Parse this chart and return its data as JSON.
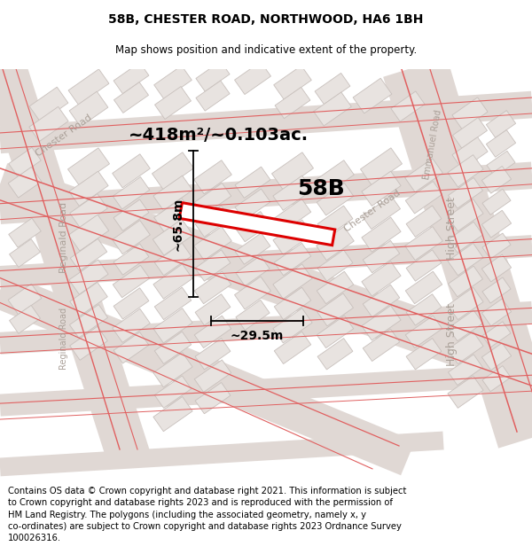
{
  "title": "58B, CHESTER ROAD, NORTHWOOD, HA6 1BH",
  "subtitle": "Map shows position and indicative extent of the property.",
  "footer": "Contains OS data © Crown copyright and database right 2021. This information is subject\nto Crown copyright and database rights 2023 and is reproduced with the permission of\nHM Land Registry. The polygons (including the associated geometry, namely x, y\nco-ordinates) are subject to Crown copyright and database rights 2023 Ordnance Survey\n100026316.",
  "area_label": "~418m²/~0.103ac.",
  "property_label": "58B",
  "width_label": "~29.5m",
  "height_label": "~65.8m",
  "map_bg": "#f2eeec",
  "building_fill": "#e8e3e0",
  "building_edge": "#c8c0bc",
  "road_fill": "#e0d8d4",
  "property_fill": "#ffffff",
  "property_edge": "#dd0000",
  "street_color": "#aaa098",
  "red_line": "#e06060",
  "title_fs": 10,
  "subtitle_fs": 8.5,
  "footer_fs": 7.2,
  "area_fs": 14,
  "prop_label_fs": 18,
  "measure_fs": 10,
  "street_fs": 8
}
